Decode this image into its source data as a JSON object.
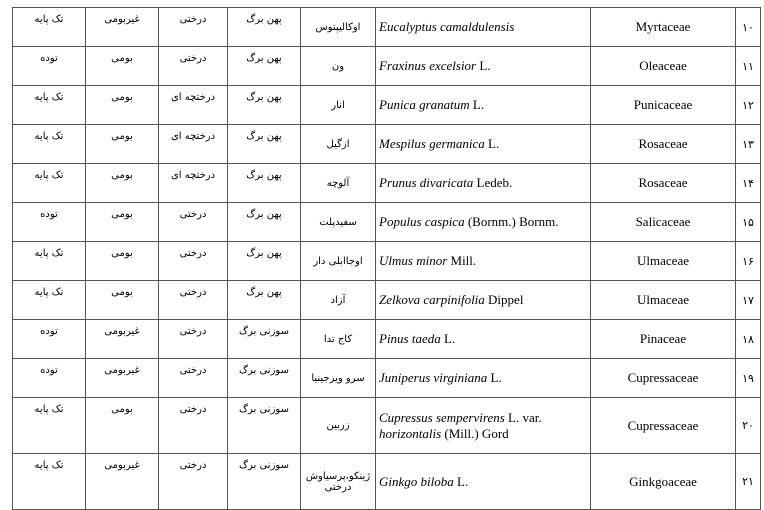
{
  "rows": [
    {
      "num": "۱۰",
      "family": "Myrtaceae",
      "sci_italic": "Eucalyptus camaldulensis",
      "sci_author": "",
      "persian": "اوکالیپتوس",
      "leaf": "پهن برگ",
      "form": "درختی",
      "origin": "غیربومی",
      "habit": "تک پایه"
    },
    {
      "num": "۱۱",
      "family": "Oleaceae",
      "sci_italic": "Fraxinus excelsior",
      "sci_author": " L.",
      "persian": "ون",
      "leaf": "پهن برگ",
      "form": "درختی",
      "origin": "بومی",
      "habit": "توده"
    },
    {
      "num": "۱۲",
      "family": "Punicaceae",
      "sci_italic": "Punica granatum",
      "sci_author": " L.",
      "persian": "انار",
      "leaf": "پهن برگ",
      "form": "درختچه ای",
      "origin": "بومی",
      "habit": "تک پایه"
    },
    {
      "num": "۱۳",
      "family": "Rosaceae",
      "sci_italic": "Mespilus germanica",
      "sci_author": " L.",
      "persian": "ازگیل",
      "leaf": "پهن برگ",
      "form": "درختچه ای",
      "origin": "بومی",
      "habit": "تک پایه"
    },
    {
      "num": "۱۴",
      "family": "Rosaceae",
      "sci_italic": "Prunus divaricata",
      "sci_author": " Ledeb.",
      "persian": "آلوچه",
      "leaf": "پهن برگ",
      "form": "درختچه ای",
      "origin": "بومی",
      "habit": "تک پایه"
    },
    {
      "num": "۱۵",
      "family": "Salicaceae",
      "sci_italic": "Populus caspica",
      "sci_author": " (Bornm.) Bornm.",
      "persian": "سفیدپلت",
      "leaf": "پهن برگ",
      "form": "درختی",
      "origin": "بومی",
      "habit": "توده"
    },
    {
      "num": "۱۶",
      "family": "Ulmaceae",
      "sci_italic": "Ulmus minor",
      "sci_author": " Mill.",
      "persian": "اوجاابلی دار",
      "leaf": "پهن برگ",
      "form": "درختی",
      "origin": "بومی",
      "habit": "تک پایه"
    },
    {
      "num": "۱۷",
      "family": "Ulmaceae",
      "sci_italic": "Zelkova carpinifolia",
      "sci_author": " Dippel",
      "persian": "آزاد",
      "leaf": "پهن برگ",
      "form": "درختی",
      "origin": "بومی",
      "habit": "تک پایه"
    },
    {
      "num": "۱۸",
      "family": "Pinaceae",
      "sci_italic": "Pinus taeda",
      "sci_author": " L.",
      "persian": "کاج تدا",
      "leaf": "سوزنی برگ",
      "form": "درختی",
      "origin": "غیربومی",
      "habit": "توده"
    },
    {
      "num": "۱۹",
      "family": "Cupressaceae",
      "sci_italic": "Juniperus virginiana",
      "sci_author": " L.",
      "persian": "سرو ویرجینیا",
      "leaf": "سوزنی برگ",
      "form": "درختی",
      "origin": "غیربومی",
      "habit": "توده"
    },
    {
      "num": "۲۰",
      "family": "Cupressaceae",
      "sci_italic": "Cupressus sempervirens",
      "sci_author": " L. var. ",
      "sci_italic2": "horizontalis",
      "sci_author2": " (Mill.) Gord",
      "persian": "زربین",
      "leaf": "سوزنی برگ",
      "form": "درختی",
      "origin": "بومی",
      "habit": "تک پایه"
    },
    {
      "num": "۲۱",
      "family": "Ginkgoaceae",
      "sci_italic": "Ginkgo biloba",
      "sci_author": " L.",
      "persian": "ژینکو،پرسیاوش درختی",
      "leaf": "سوزنی برگ",
      "form": "درختی",
      "origin": "غیربومی",
      "habit": "تک پایه"
    }
  ]
}
